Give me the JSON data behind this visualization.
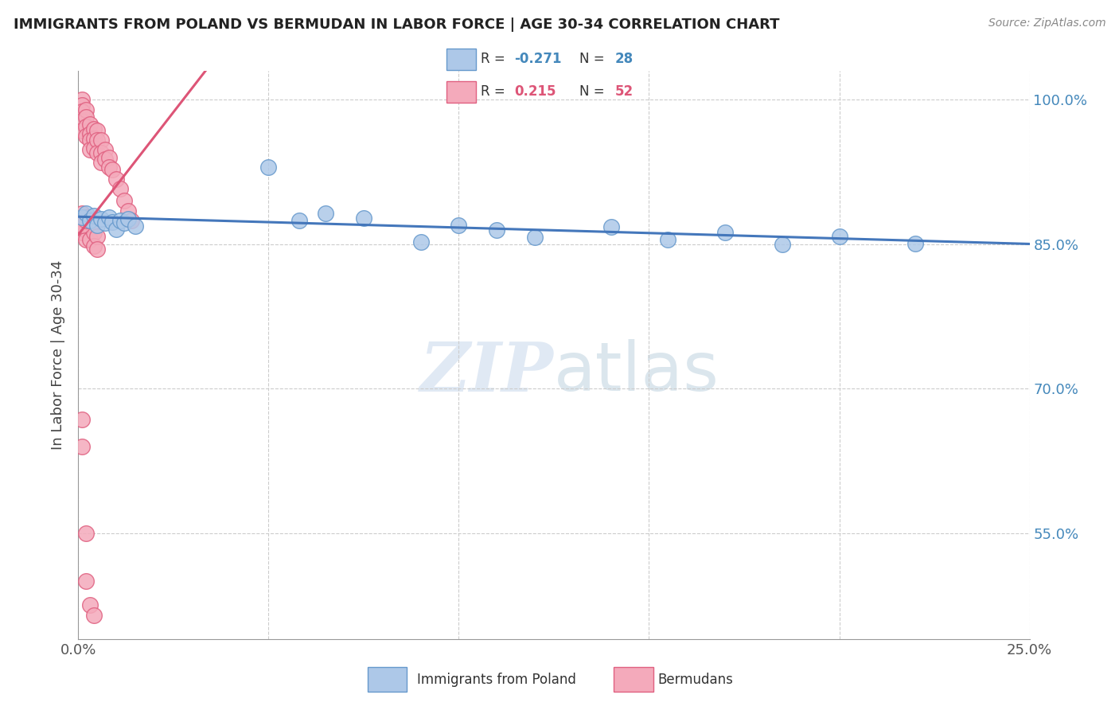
{
  "title": "IMMIGRANTS FROM POLAND VS BERMUDAN IN LABOR FORCE | AGE 30-34 CORRELATION CHART",
  "source": "Source: ZipAtlas.com",
  "ylabel": "In Labor Force | Age 30-34",
  "xlim": [
    0.0,
    0.25
  ],
  "ylim": [
    0.44,
    1.03
  ],
  "xtick_vals": [
    0.0,
    0.05,
    0.1,
    0.15,
    0.2,
    0.25
  ],
  "xticklabels": [
    "0.0%",
    "",
    "",
    "",
    "",
    "25.0%"
  ],
  "ytick_positions": [
    1.0,
    0.85,
    0.7,
    0.55
  ],
  "ytick_labels": [
    "100.0%",
    "85.0%",
    "70.0%",
    "55.0%"
  ],
  "poland_color": "#adc8e8",
  "poland_edge": "#6699cc",
  "bermuda_color": "#f4aabb",
  "bermuda_edge": "#e06080",
  "R_poland": -0.271,
  "N_poland": 28,
  "R_bermuda": 0.215,
  "N_bermuda": 52,
  "trend_poland_color": "#4477bb",
  "trend_bermuda_color": "#dd5577",
  "watermark_zip": "ZIP",
  "watermark_atlas": "atlas",
  "poland_x": [
    0.001,
    0.002,
    0.003,
    0.004,
    0.005,
    0.006,
    0.007,
    0.008,
    0.009,
    0.01,
    0.011,
    0.012,
    0.013,
    0.015,
    0.05,
    0.058,
    0.065,
    0.075,
    0.09,
    0.1,
    0.11,
    0.12,
    0.14,
    0.155,
    0.17,
    0.185,
    0.2,
    0.22
  ],
  "poland_y": [
    0.878,
    0.882,
    0.875,
    0.88,
    0.87,
    0.876,
    0.872,
    0.878,
    0.873,
    0.866,
    0.875,
    0.872,
    0.876,
    0.869,
    0.93,
    0.875,
    0.882,
    0.877,
    0.852,
    0.87,
    0.865,
    0.857,
    0.868,
    0.855,
    0.862,
    0.85,
    0.858,
    0.851
  ],
  "bermuda_x": [
    0.001,
    0.001,
    0.001,
    0.001,
    0.001,
    0.002,
    0.002,
    0.002,
    0.002,
    0.003,
    0.003,
    0.003,
    0.003,
    0.004,
    0.004,
    0.004,
    0.005,
    0.005,
    0.005,
    0.006,
    0.006,
    0.006,
    0.007,
    0.007,
    0.008,
    0.008,
    0.009,
    0.01,
    0.011,
    0.012,
    0.013,
    0.014,
    0.001,
    0.001,
    0.001,
    0.002,
    0.002,
    0.002,
    0.003,
    0.003,
    0.004,
    0.004,
    0.005,
    0.005,
    0.001,
    0.001,
    0.002,
    0.002,
    0.003,
    0.004,
    0.001,
    0.002
  ],
  "bermuda_y": [
    1.0,
    0.995,
    0.988,
    0.978,
    0.968,
    0.99,
    0.982,
    0.972,
    0.962,
    0.975,
    0.965,
    0.958,
    0.948,
    0.97,
    0.96,
    0.95,
    0.968,
    0.958,
    0.945,
    0.958,
    0.945,
    0.935,
    0.948,
    0.938,
    0.94,
    0.93,
    0.928,
    0.918,
    0.908,
    0.895,
    0.885,
    0.875,
    0.882,
    0.872,
    0.862,
    0.878,
    0.865,
    0.855,
    0.868,
    0.855,
    0.862,
    0.848,
    0.858,
    0.845,
    0.668,
    0.64,
    0.55,
    0.5,
    0.475,
    0.465,
    0.87,
    0.875
  ]
}
